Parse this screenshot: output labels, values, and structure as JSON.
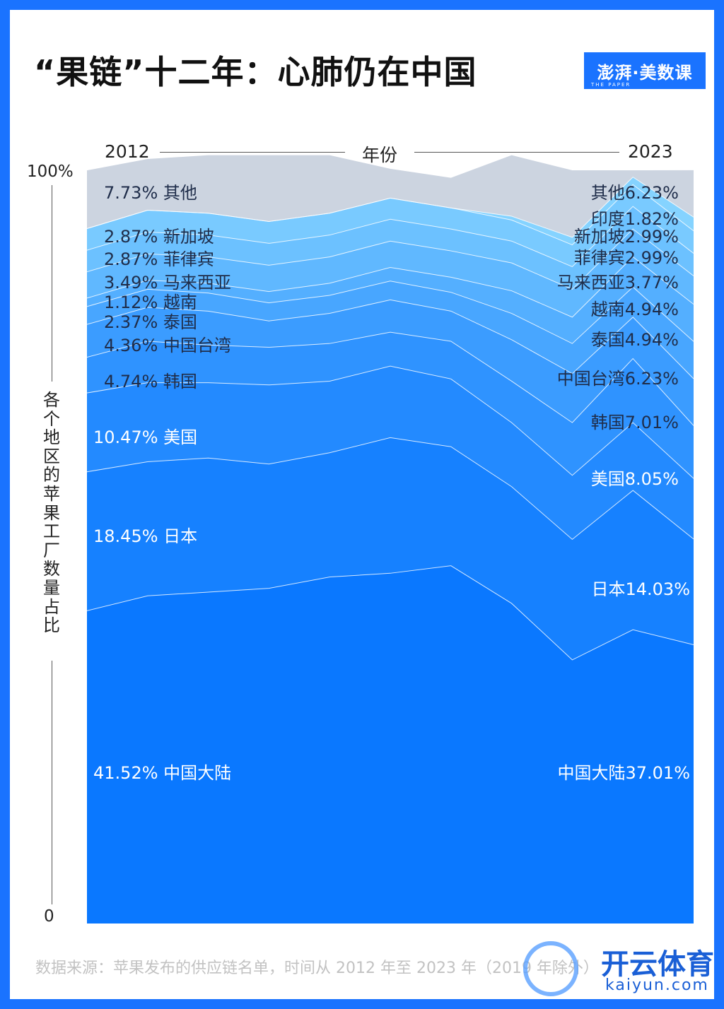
{
  "header": {
    "title": "“果链”十二年：心肺仍在中国",
    "logo": "澎湃·美数课",
    "logo_sub": "THE PAPER"
  },
  "axis": {
    "x_start": "2012",
    "x_title": "年份",
    "x_end": "2023",
    "y_top": "100%",
    "y_bottom": "0",
    "y_title": "各个地区的苹果工厂数量占比"
  },
  "footer": {
    "source": "数据来源：苹果发布的供应链名单，时间从 2012 年至 2023 年（2019 年除外）",
    "watermark": "开云体育",
    "watermark_sub": "kaiyun.com"
  },
  "colors": {
    "background": "#1a73ff",
    "band_darkest": "#0a78ff",
    "band_lightest": "#85d3ff",
    "other_band": "#ccd4e0",
    "label_light": "#ffffff",
    "label_dark": "#1f2d4a"
  },
  "chart_data": {
    "type": "area",
    "stacked": true,
    "ylim": [
      0,
      100
    ],
    "x": [
      "2012",
      "2013",
      "2014",
      "2015",
      "2016",
      "2017",
      "2018",
      "2020",
      "2021",
      "2022",
      "2023"
    ],
    "series": [
      {
        "name": "中国大陆",
        "values": [
          41.52,
          43.5,
          44.0,
          44.5,
          46.0,
          46.5,
          47.5,
          42.5,
          35.0,
          39.0,
          37.01
        ],
        "label_start": "41.52% 中国大陆",
        "label_end": "中国大陆37.01%"
      },
      {
        "name": "日本",
        "values": [
          18.45,
          17.8,
          17.8,
          16.5,
          16.5,
          18.0,
          15.8,
          15.5,
          16.0,
          18.5,
          14.03
        ],
        "label_start": "18.45% 日本",
        "label_end": "日本14.03%"
      },
      {
        "name": "美国",
        "values": [
          10.47,
          10.5,
          10.0,
          10.5,
          9.5,
          9.5,
          9.0,
          8.5,
          8.5,
          9.0,
          8.05
        ],
        "label_start": "10.47% 美国",
        "label_end": "美国8.05%"
      },
      {
        "name": "韩国",
        "values": [
          4.74,
          5.5,
          5.0,
          5.0,
          5.0,
          4.5,
          5.0,
          5.5,
          7.0,
          8.5,
          7.01
        ],
        "label_start": "4.74% 韩国",
        "label_end": "韩国7.01%"
      },
      {
        "name": "中国台湾",
        "values": [
          4.36,
          4.5,
          4.5,
          3.5,
          4.0,
          4.3,
          4.0,
          5.5,
          6.5,
          5.5,
          6.23
        ],
        "label_start": "4.36% 中国台湾",
        "label_end": "中国台湾6.23%"
      },
      {
        "name": "泰国",
        "values": [
          2.37,
          2.4,
          2.4,
          2.4,
          2.4,
          2.5,
          2.5,
          3.5,
          4.0,
          4.0,
          4.94
        ],
        "label_start": "2.37% 泰国",
        "label_end": "泰国4.94%"
      },
      {
        "name": "越南",
        "values": [
          1.12,
          1.2,
          1.3,
          1.5,
          1.6,
          1.8,
          2.0,
          3.0,
          3.5,
          4.0,
          4.94
        ],
        "label_start": "1.12% 越南",
        "label_end": "越南4.94%"
      },
      {
        "name": "马来西亚",
        "values": [
          3.49,
          3.5,
          3.5,
          3.5,
          3.5,
          3.5,
          3.5,
          3.7,
          3.7,
          3.7,
          3.77
        ],
        "label_start": "3.49% 马来西亚",
        "label_end": "马来西亚3.77%"
      },
      {
        "name": "菲律宾",
        "values": [
          2.87,
          2.9,
          2.9,
          2.9,
          2.9,
          2.9,
          2.9,
          2.9,
          3.0,
          3.0,
          2.99
        ],
        "label_start": "2.87% 菲律宾",
        "label_end": "菲律宾2.99%"
      },
      {
        "name": "新加坡",
        "values": [
          2.87,
          2.9,
          2.9,
          2.9,
          2.9,
          2.8,
          2.8,
          2.8,
          2.9,
          2.9,
          2.99
        ],
        "label_start": "2.87% 新加坡",
        "label_end": "新加坡2.99%"
      },
      {
        "name": "印度",
        "values": [
          0,
          0,
          0,
          0,
          0,
          0,
          0,
          0.5,
          1.0,
          1.0,
          1.82
        ],
        "label_start": "",
        "label_end": "印度1.82%"
      },
      {
        "name": "其他",
        "values": [
          7.73,
          6.8,
          7.7,
          8.8,
          7.7,
          3.9,
          4.0,
          8.1,
          8.9,
          0.9,
          6.23
        ],
        "label_start": "7.73% 其他",
        "label_end": "其他6.23%"
      }
    ]
  }
}
